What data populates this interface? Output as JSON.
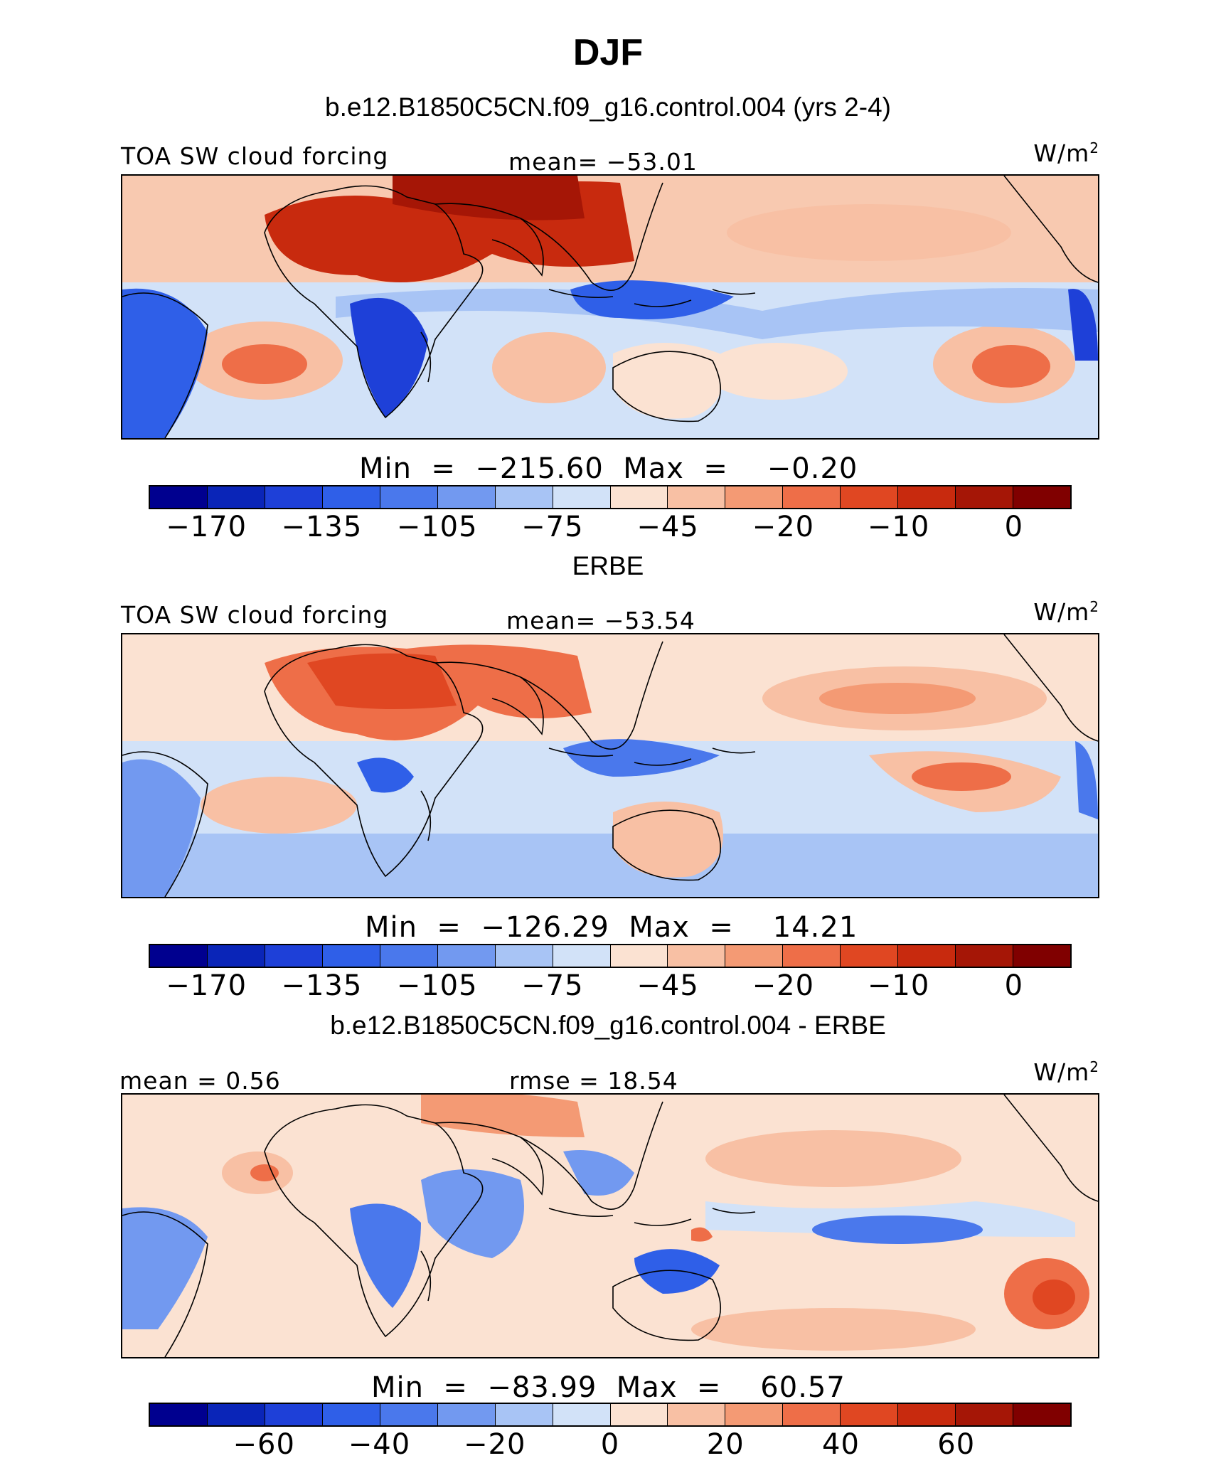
{
  "title": "DJF",
  "chart_data": [
    {
      "type": "heatmap",
      "title": "b.e12.B1850C5CN.f09_g16.control.004 (yrs 2-4)",
      "variable": "TOA SW cloud forcing",
      "units_base": "W/m",
      "units_exp": "2",
      "mean_label": "mean= -53.01",
      "stat_line": "Min  =  -215.60  Max  =    -0.20",
      "min": -215.6,
      "max": -0.2,
      "mean": -53.01,
      "colorbar_ticks": [
        "-170",
        "-135",
        "-105",
        "-75",
        "-45",
        "-20",
        "-10",
        "0"
      ]
    },
    {
      "type": "heatmap",
      "title": "ERBE",
      "variable": "TOA SW cloud forcing",
      "units_base": "W/m",
      "units_exp": "2",
      "mean_label": "mean= -53.54",
      "stat_line": "Min  =  -126.29  Max  =    14.21",
      "min": -126.29,
      "max": 14.21,
      "mean": -53.54,
      "colorbar_ticks": [
        "-170",
        "-135",
        "-105",
        "-75",
        "-45",
        "-20",
        "-10",
        "0"
      ]
    },
    {
      "type": "heatmap",
      "title": "b.e12.B1850C5CN.f09_g16.control.004 - ERBE",
      "mean_label": "mean =    0.56",
      "rmse_label": "rmse =   18.54",
      "units_base": "W/m",
      "units_exp": "2",
      "stat_line": "Min  =  -83.99  Max  =    60.57",
      "min": -83.99,
      "max": 60.57,
      "mean": 0.56,
      "rmse": 18.54,
      "colorbar_ticks": [
        "-60",
        "-40",
        "-20",
        "0",
        "20",
        "40",
        "60"
      ]
    }
  ],
  "colors": {
    "palette": [
      "#00008f",
      "#0a25b8",
      "#1e40d8",
      "#2f5fe8",
      "#4a78ec",
      "#7299f0",
      "#a8c4f5",
      "#d2e2f8",
      "#fbe2d2",
      "#f8c0a4",
      "#f49a74",
      "#ee6e48",
      "#e04722",
      "#c82a0e",
      "#a51606",
      "#800000"
    ]
  }
}
